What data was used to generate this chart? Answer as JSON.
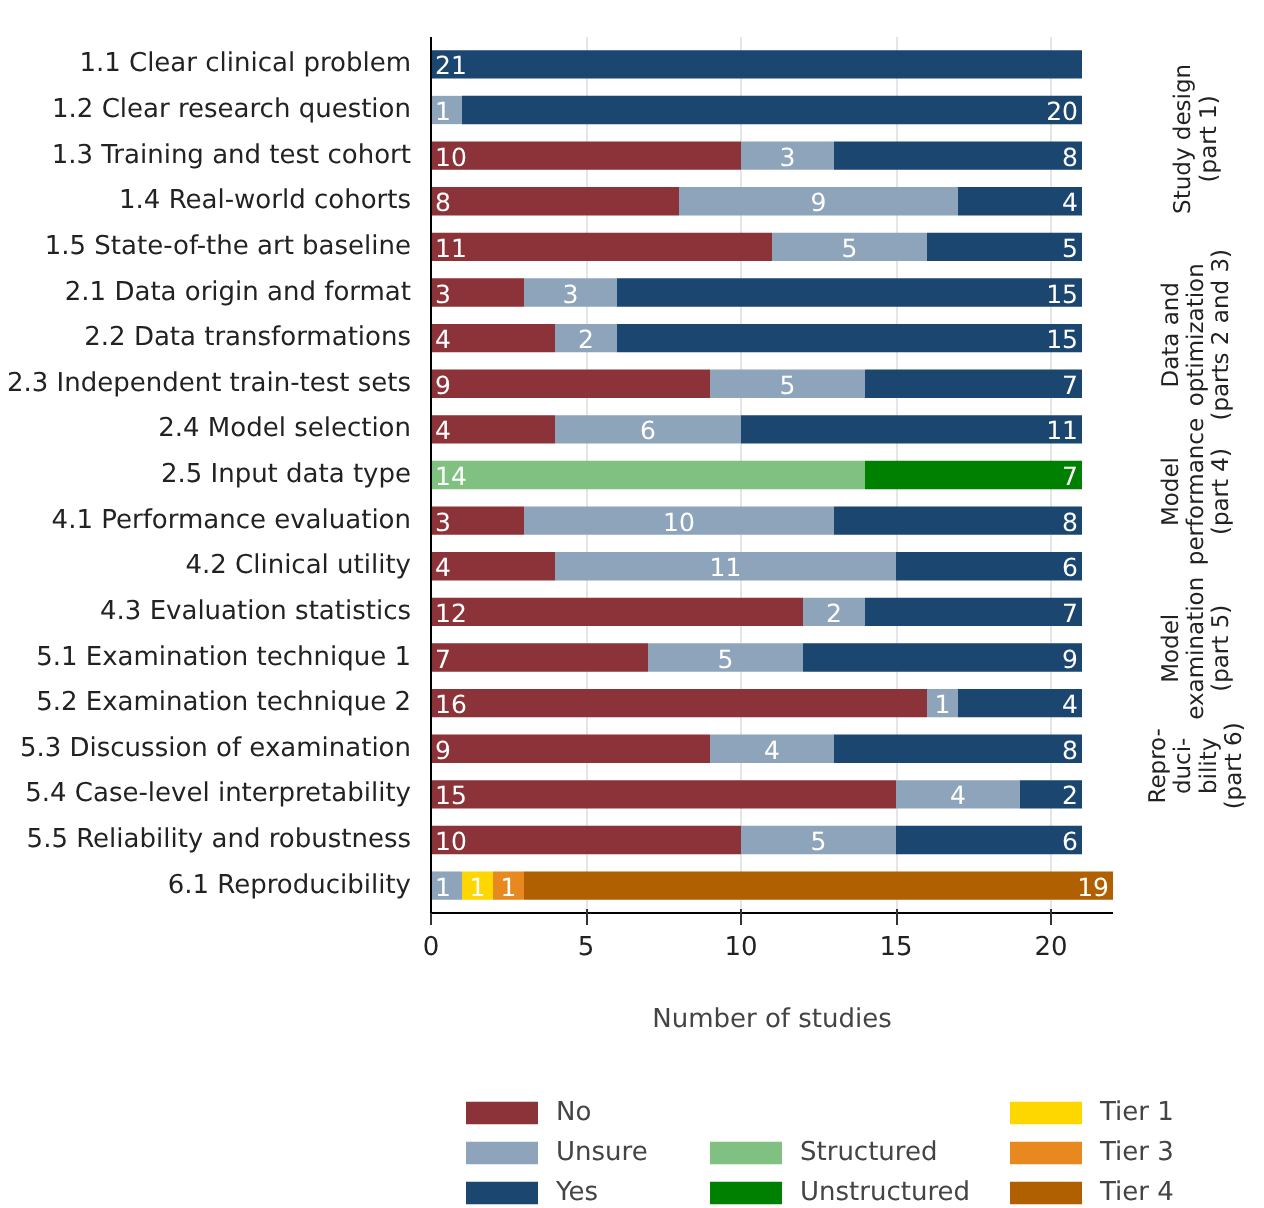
{
  "chart_data": {
    "type": "bar",
    "orientation": "horizontal",
    "stacked": true,
    "data_labels": true,
    "grid": "x",
    "legend": "bottom",
    "xlabel": "Number of studies",
    "xlim": [
      0,
      22
    ],
    "xticks": [
      0,
      5,
      10,
      15,
      20
    ],
    "categories": [
      "1.1 Clear clinical problem",
      "1.2 Clear research question",
      "1.3 Training and test cohort",
      "1.4 Real-world cohorts",
      "1.5 State-of-the art baseline",
      "2.1 Data origin and format",
      "2.2 Data transformations",
      "2.3 Independent train-test sets",
      "2.4 Model selection",
      "2.5 Input data type",
      "4.1 Performance evaluation",
      "4.2 Clinical utility",
      "4.3 Evaluation statistics",
      "5.1 Examination technique 1",
      "5.2 Examination technique 2",
      "5.3 Discussion of examination",
      "5.4 Case-level interpretability",
      "5.5 Reliability and robustness",
      "6.1 Reproducibility"
    ],
    "series": [
      {
        "name": "No",
        "color": "#8c3239",
        "values": [
          null,
          null,
          10,
          8,
          11,
          3,
          4,
          9,
          4,
          null,
          3,
          4,
          12,
          7,
          16,
          9,
          15,
          10,
          null
        ]
      },
      {
        "name": "Unsure",
        "color": "#8ea4ba",
        "values": [
          null,
          1,
          3,
          9,
          5,
          3,
          2,
          5,
          6,
          null,
          10,
          11,
          2,
          5,
          1,
          4,
          4,
          5,
          1
        ]
      },
      {
        "name": "Yes",
        "color": "#1b4670",
        "values": [
          21,
          20,
          8,
          4,
          5,
          15,
          15,
          7,
          11,
          null,
          8,
          6,
          7,
          9,
          4,
          8,
          2,
          6,
          null
        ]
      },
      {
        "name": "Structured",
        "color": "#80c080",
        "values": [
          null,
          null,
          null,
          null,
          null,
          null,
          null,
          null,
          null,
          14,
          null,
          null,
          null,
          null,
          null,
          null,
          null,
          null,
          null
        ]
      },
      {
        "name": "Unstructured",
        "color": "#008000",
        "values": [
          null,
          null,
          null,
          null,
          null,
          null,
          null,
          null,
          null,
          7,
          null,
          null,
          null,
          null,
          null,
          null,
          null,
          null,
          null
        ]
      },
      {
        "name": "Tier 1",
        "color": "#ffd700",
        "values": [
          null,
          null,
          null,
          null,
          null,
          null,
          null,
          null,
          null,
          null,
          null,
          null,
          null,
          null,
          null,
          null,
          null,
          null,
          1
        ]
      },
      {
        "name": "Tier 3",
        "color": "#e8891f",
        "values": [
          null,
          null,
          null,
          null,
          null,
          null,
          null,
          null,
          null,
          null,
          null,
          null,
          null,
          null,
          null,
          null,
          null,
          null,
          1
        ]
      },
      {
        "name": "Tier 4",
        "color": "#b06000",
        "values": [
          null,
          null,
          null,
          null,
          null,
          null,
          null,
          null,
          null,
          null,
          null,
          null,
          null,
          null,
          null,
          null,
          null,
          null,
          19
        ]
      }
    ],
    "annotations": [
      "Study design\n(part 1)",
      "Data and\noptimization\n(parts 2 and 3)",
      "Model\nperformance\n(part 4)",
      "Model\nexamination\n(part 5)",
      "Repro-\nduci-\nbility\n(part 6)"
    ]
  }
}
